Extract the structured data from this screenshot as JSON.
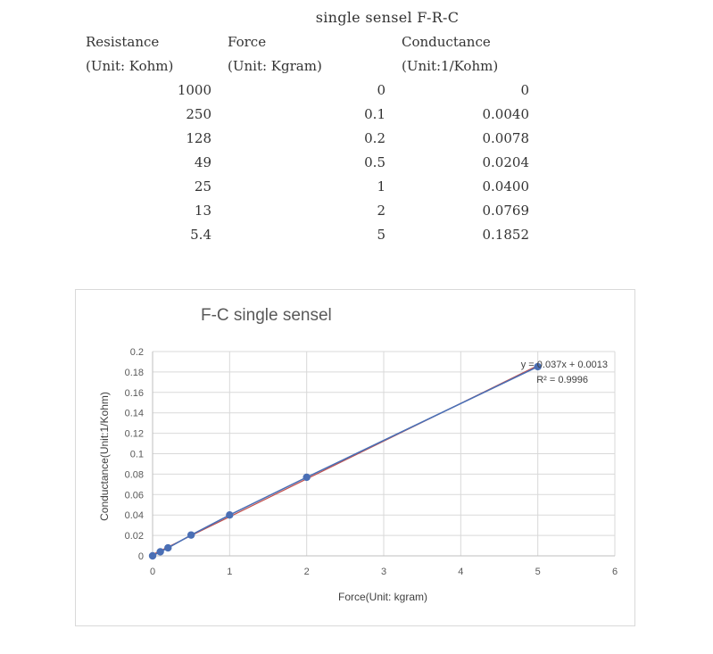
{
  "table": {
    "title": "single sensel F-R-C",
    "headers": [
      "Resistance",
      "Force",
      "Conductance"
    ],
    "units": [
      "(Unit: Kohm)",
      "(Unit: Kgram)",
      "(Unit:1/Kohm)"
    ],
    "rows": [
      [
        "1000",
        "0",
        "0"
      ],
      [
        "250",
        "0.1",
        "0.0040"
      ],
      [
        "128",
        "0.2",
        "0.0078"
      ],
      [
        "49",
        "0.5",
        "0.0204"
      ],
      [
        "25",
        "1",
        "0.0400"
      ],
      [
        "13",
        "2",
        "0.0769"
      ],
      [
        "5.4",
        "5",
        "0.1852"
      ]
    ]
  },
  "chart_data": {
    "type": "scatter",
    "title": "F-C single sensel",
    "xlabel": "Force(Unit: kgram)",
    "ylabel": "Conductance(Unit:1/Kohm)",
    "xlim": [
      0,
      6
    ],
    "ylim": [
      0,
      0.2
    ],
    "x_ticks": [
      "0",
      "1",
      "2",
      "3",
      "4",
      "5",
      "6"
    ],
    "y_ticks": [
      "0",
      "0.02",
      "0.04",
      "0.06",
      "0.08",
      "0.1",
      "0.12",
      "0.14",
      "0.16",
      "0.18",
      "0.2"
    ],
    "grid": true,
    "series": [
      {
        "x": [
          0,
          0.1,
          0.2,
          0.5,
          1,
          2,
          5
        ],
        "y": [
          0,
          0.004,
          0.0078,
          0.0204,
          0.04,
          0.0769,
          0.1852
        ],
        "color": "#4a6fb5"
      }
    ],
    "trendline": {
      "type": "linear",
      "equation": "y = 0.037x + 0.0013",
      "r_squared": "R² = 0.9996",
      "slope": 0.037,
      "intercept": 0.0013,
      "color": "#c0504d"
    }
  }
}
